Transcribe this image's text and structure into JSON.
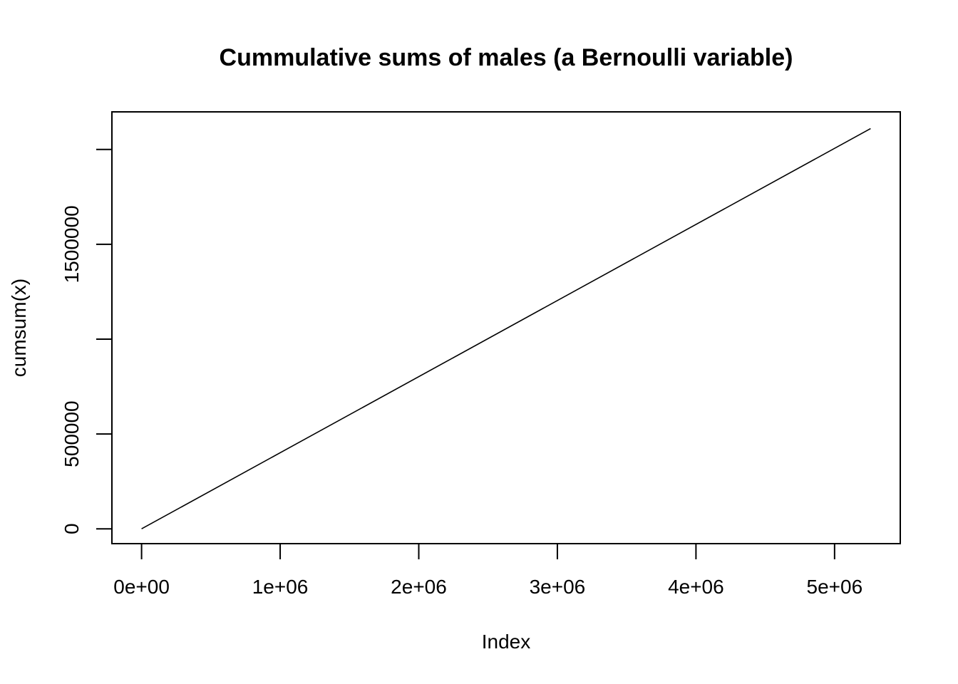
{
  "chart_data": {
    "type": "line",
    "title": "Cummulative sums of males (a Bernoulli variable)",
    "xlabel": "Index",
    "ylabel": "cumsum(x)",
    "xlim": [
      -214000,
      5474000
    ],
    "ylim": [
      -78000,
      2198000
    ],
    "x_ticks": [
      0,
      1000000,
      2000000,
      3000000,
      4000000,
      5000000
    ],
    "x_tick_labels": [
      "0e+00",
      "1e+06",
      "2e+06",
      "3e+06",
      "4e+06",
      "5e+06"
    ],
    "y_ticks": [
      0,
      500000,
      1000000,
      1500000,
      2000000
    ],
    "y_tick_labels": [
      "0",
      "500000",
      "",
      "1500000",
      ""
    ],
    "grid": false,
    "legend": "none",
    "line_color": "#000000",
    "series": [
      {
        "x": [
          1,
          5260000
        ],
        "y": [
          0,
          2110000
        ]
      }
    ]
  }
}
